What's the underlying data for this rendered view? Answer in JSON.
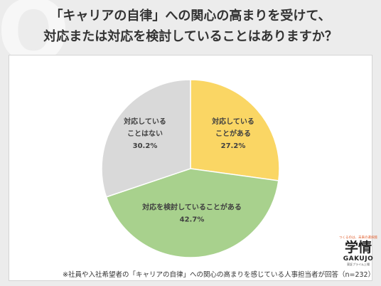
{
  "header": {
    "bg_mark": "Q",
    "title_line1": "「キャリアの自律」への関心の高まりを受けて、",
    "title_line2": "対応または対応を検討していることはありますか？"
  },
  "chart_data": {
    "type": "pie",
    "slices": [
      {
        "label": [
          "対応している",
          "ことがある"
        ],
        "value": 27.2,
        "display": "27.2%",
        "color": "#fad664"
      },
      {
        "label": [
          "対応を検討していることがある"
        ],
        "value": 42.7,
        "display": "42.7%",
        "color": "#a8d18d"
      },
      {
        "label": [
          "対応している",
          "ことはない"
        ],
        "value": 30.2,
        "display": "30.2%",
        "color": "#d9d9d9"
      }
    ],
    "start": "12 o'clock",
    "direction": "clockwise"
  },
  "footnote": "※社員や入社希望者の「キャリアの自律」への関心の高まりを感じている人事担当者が回答（n=232）",
  "logo": {
    "tagline": "つくるのは、未来の選択肢",
    "main": "学情",
    "english": "GAKUJO",
    "sub": "東証プライム上場"
  }
}
